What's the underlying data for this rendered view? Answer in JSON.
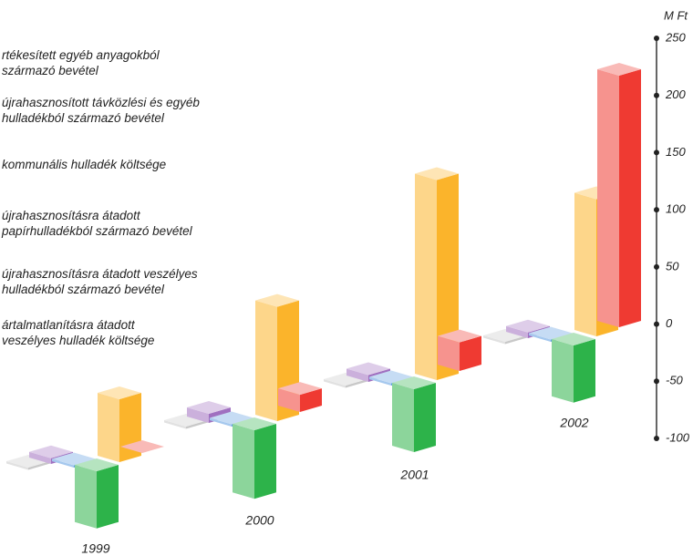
{
  "chart_data": {
    "type": "bar3d",
    "y_label": "M Ft",
    "categories": [
      "1999",
      "2000",
      "2001",
      "2002"
    ],
    "ylim": [
      -100,
      250
    ],
    "yticks": [
      250,
      200,
      150,
      100,
      50,
      0,
      -50,
      -100
    ],
    "series": [
      {
        "name": "rtékesített egyéb anyagokból\nszármazó bevétel",
        "color": "#ef3a32",
        "values": [
          0,
          15,
          25,
          220
        ]
      },
      {
        "name": "újrahasznosított távközlési és egyéb\nhulladékból származó bevétel",
        "color": "#fbb42b",
        "values": [
          55,
          100,
          175,
          120
        ]
      },
      {
        "name": "kommunális hulladék költsége",
        "color": "#2db34a",
        "values": [
          -50,
          -60,
          -55,
          -50
        ]
      },
      {
        "name": "újrahasznosításra átadott\npapírhulladékból származó bevétel",
        "color": "#5b9be0",
        "values": [
          2,
          2,
          2,
          2
        ]
      },
      {
        "name": "újrahasznosításra átadott veszélyes\nhulladékból származó bevétel",
        "color": "#a070c0",
        "values": [
          5,
          8,
          6,
          5
        ]
      },
      {
        "name": "ártalmatlanításra átadott\nveszélyes hulladék költsége",
        "color": "#c8c8c8",
        "values": [
          -2,
          -2,
          -2,
          -2
        ]
      }
    ]
  }
}
